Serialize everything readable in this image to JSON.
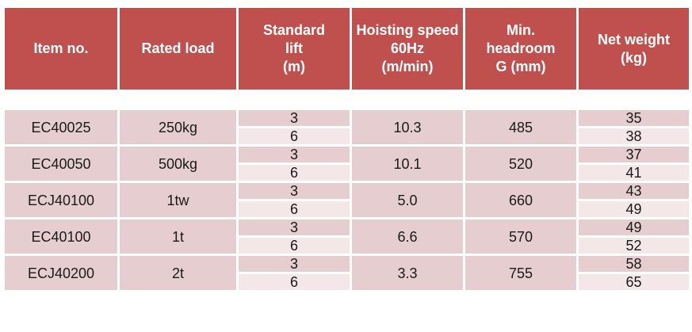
{
  "headers": {
    "item_no": "Item no.",
    "rated_load": "Rated load",
    "lift_l1": "Standard",
    "lift_l2": "lift",
    "lift_l3": "(m)",
    "speed_l1": "Hoisting speed",
    "speed_l2": "60Hz",
    "speed_l3": "(m/min)",
    "headroom_l1": "Min.",
    "headroom_l2": "headroom",
    "headroom_l3": "G (mm)",
    "weight_l1": "Net weight",
    "weight_l2": "(kg)"
  },
  "rows": [
    {
      "item": "EC40025",
      "load": "250kg",
      "lift": [
        "3",
        "6"
      ],
      "speed": "10.3",
      "headroom": "485",
      "weight": [
        "35",
        "38"
      ]
    },
    {
      "item": "EC40050",
      "load": "500kg",
      "lift": [
        "3",
        "6"
      ],
      "speed": "10.1",
      "headroom": "520",
      "weight": [
        "37",
        "41"
      ]
    },
    {
      "item": "ECJ40100",
      "load": "1tw",
      "lift": [
        "3",
        "6"
      ],
      "speed": "5.0",
      "headroom": "660",
      "weight": [
        "43",
        "49"
      ]
    },
    {
      "item": "EC40100",
      "load": "1t",
      "lift": [
        "3",
        "6"
      ],
      "speed": "6.6",
      "headroom": "570",
      "weight": [
        "49",
        "52"
      ]
    },
    {
      "item": "ECJ40200",
      "load": "2t",
      "lift": [
        "3",
        "6"
      ],
      "speed": "3.3",
      "headroom": "755",
      "weight": [
        "58",
        "65"
      ]
    }
  ],
  "colors": {
    "header_bg": "#c0504d",
    "header_text": "#ffffff",
    "cell_dark": "#e6cdcf",
    "cell_light": "#f3e7e8"
  }
}
